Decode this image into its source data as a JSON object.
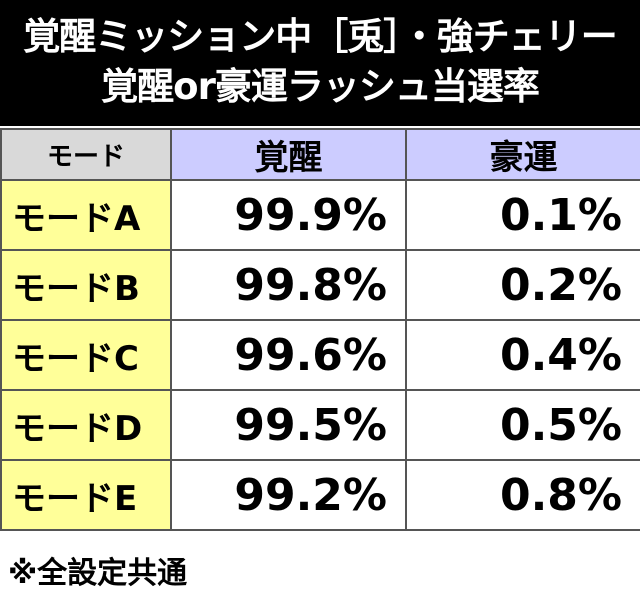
{
  "header": {
    "title_lines": [
      "覚醒ミッション中［兎］・強チェリー",
      "覚醒or豪運ラッシュ当選率"
    ]
  },
  "table": {
    "columns": [
      "モード",
      "覚醒",
      "豪運"
    ],
    "rows": [
      [
        "モードA",
        "99.9%",
        "0.1%"
      ],
      [
        "モードB",
        "99.8%",
        "0.2%"
      ],
      [
        "モードC",
        "99.6%",
        "0.4%"
      ],
      [
        "モードD",
        "99.5%",
        "0.5%"
      ],
      [
        "モードE",
        "99.2%",
        "0.8%"
      ]
    ]
  },
  "footer": {
    "note": "※全設定共通"
  }
}
